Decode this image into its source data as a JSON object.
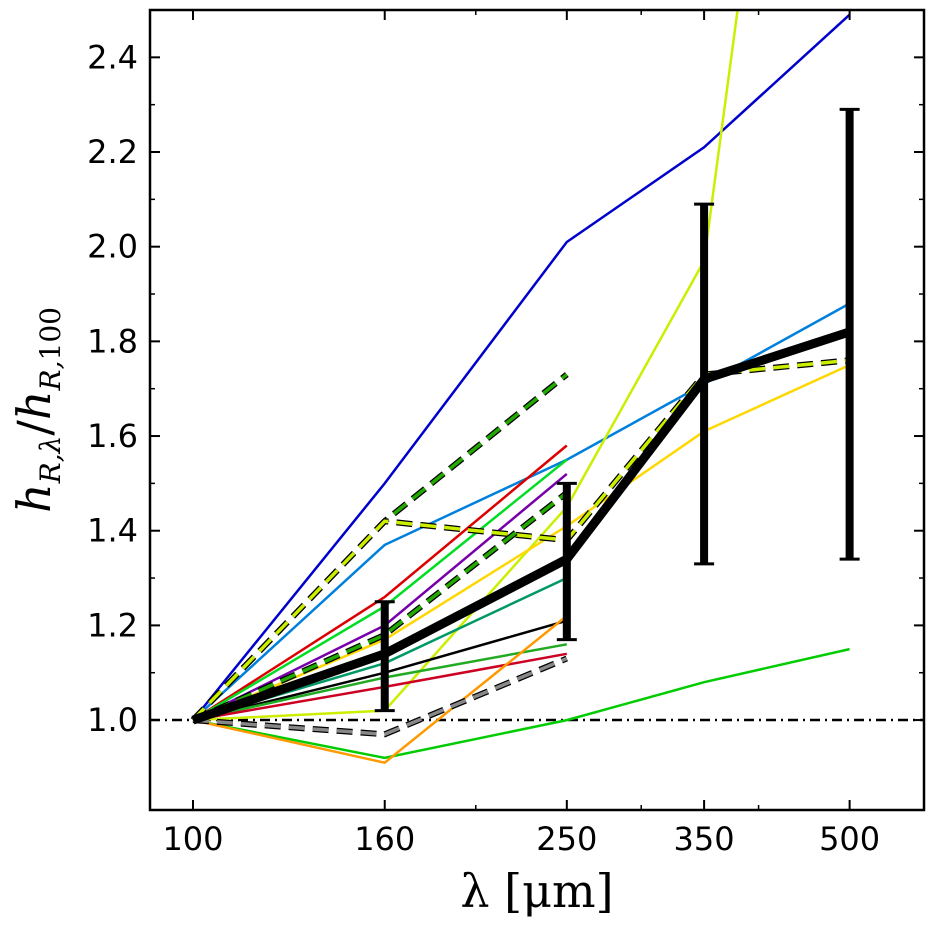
{
  "chart_data": {
    "type": "line",
    "title": "",
    "xlabel": "λ [μm]",
    "ylabel": "h_{R,λ} / h_{R,100}",
    "xscale": "log",
    "xlim": [
      90,
      600
    ],
    "ylim": [
      0.81,
      2.5
    ],
    "x_ticks": [
      100,
      160,
      250,
      350,
      500
    ],
    "x_tick_labels": [
      "100",
      "160",
      "250",
      "350",
      "500"
    ],
    "y_ticks": [
      1.0,
      1.2,
      1.4,
      1.6,
      1.8,
      2.0,
      2.2,
      2.4
    ],
    "y_tick_labels": [
      "1.0",
      "1.2",
      "1.4",
      "1.6",
      "1.8",
      "2.0",
      "2.2",
      "2.4"
    ],
    "reference_line": {
      "y": 1.0,
      "style": "dash-dot",
      "color": "#000000"
    },
    "series": [
      {
        "name": "blue",
        "color": "#0000cc",
        "style": "solid",
        "x": [
          100,
          160,
          250,
          350,
          500
        ],
        "y": [
          1.0,
          1.5,
          2.01,
          2.21,
          2.49
        ]
      },
      {
        "name": "azure",
        "color": "#0080dd",
        "style": "solid",
        "x": [
          100,
          160,
          250,
          350,
          500
        ],
        "y": [
          1.0,
          1.37,
          1.55,
          1.71,
          1.88
        ]
      },
      {
        "name": "yellow-green",
        "color": "#ccee00",
        "style": "solid",
        "x": [
          100,
          160,
          250,
          350,
          380
        ],
        "y": [
          1.0,
          1.02,
          1.45,
          1.97,
          2.5
        ]
      },
      {
        "name": "gold",
        "color": "#ffd700",
        "style": "solid",
        "x": [
          100,
          160,
          250,
          350,
          500
        ],
        "y": [
          1.0,
          1.17,
          1.41,
          1.61,
          1.75
        ]
      },
      {
        "name": "green-long",
        "color": "#00cc00",
        "style": "solid",
        "x": [
          100,
          160,
          250,
          350,
          500
        ],
        "y": [
          1.0,
          0.92,
          1.0,
          1.08,
          1.15
        ]
      },
      {
        "name": "red",
        "color": "#dd0000",
        "style": "solid",
        "x": [
          100,
          160,
          250
        ],
        "y": [
          1.0,
          1.26,
          1.58
        ]
      },
      {
        "name": "green",
        "color": "#00dd22",
        "style": "solid",
        "x": [
          100,
          160,
          250
        ],
        "y": [
          1.0,
          1.24,
          1.55
        ]
      },
      {
        "name": "purple",
        "color": "#7700aa",
        "style": "solid",
        "x": [
          100,
          160,
          250
        ],
        "y": [
          1.0,
          1.2,
          1.52
        ]
      },
      {
        "name": "teal",
        "color": "#00aa99",
        "style": "solid",
        "x": [
          100,
          160,
          250
        ],
        "y": [
          1.0,
          1.14,
          1.34
        ]
      },
      {
        "name": "blue-green",
        "color": "#009966",
        "style": "solid",
        "x": [
          100,
          160,
          250
        ],
        "y": [
          1.0,
          1.12,
          1.3
        ]
      },
      {
        "name": "black-thin",
        "color": "#000000",
        "style": "solid",
        "x": [
          100,
          160,
          250
        ],
        "y": [
          1.0,
          1.1,
          1.21
        ]
      },
      {
        "name": "dark-green",
        "color": "#22aa22",
        "style": "solid",
        "x": [
          100,
          160,
          250
        ],
        "y": [
          1.0,
          1.09,
          1.16
        ]
      },
      {
        "name": "crimson",
        "color": "#cc0022",
        "style": "solid",
        "x": [
          100,
          160,
          250
        ],
        "y": [
          1.0,
          1.07,
          1.14
        ]
      },
      {
        "name": "orange",
        "color": "#ff9900",
        "style": "solid",
        "x": [
          100,
          160,
          250
        ],
        "y": [
          1.0,
          0.91,
          1.22
        ]
      },
      {
        "name": "dashed-upper",
        "color": "#22aa00",
        "style": "dashed",
        "x": [
          100,
          160,
          250
        ],
        "y": [
          1.0,
          1.42,
          1.73
        ]
      },
      {
        "name": "dashed-plateau",
        "color": "#ccee00",
        "style": "dashed",
        "x": [
          100,
          160,
          250,
          350,
          500
        ],
        "y": [
          1.0,
          1.42,
          1.38,
          1.73,
          1.76
        ]
      },
      {
        "name": "dashed-mid",
        "color": "#22aa00",
        "style": "dashed",
        "x": [
          100,
          160,
          250
        ],
        "y": [
          1.0,
          1.18,
          1.48
        ]
      },
      {
        "name": "dashed-grey",
        "color": "#888888",
        "style": "dashed",
        "x": [
          100,
          160,
          250
        ],
        "y": [
          1.0,
          0.97,
          1.13
        ]
      }
    ],
    "mean": {
      "name": "mean",
      "color": "#000000",
      "x": [
        100,
        160,
        250,
        350,
        500
      ],
      "y": [
        1.0,
        1.14,
        1.34,
        1.72,
        1.82
      ],
      "error_bars": [
        {
          "x": 160,
          "low": 1.02,
          "high": 1.25
        },
        {
          "x": 250,
          "low": 1.17,
          "high": 1.5
        },
        {
          "x": 350,
          "low": 1.33,
          "high": 2.09
        },
        {
          "x": 500,
          "low": 1.34,
          "high": 2.29
        }
      ]
    }
  }
}
